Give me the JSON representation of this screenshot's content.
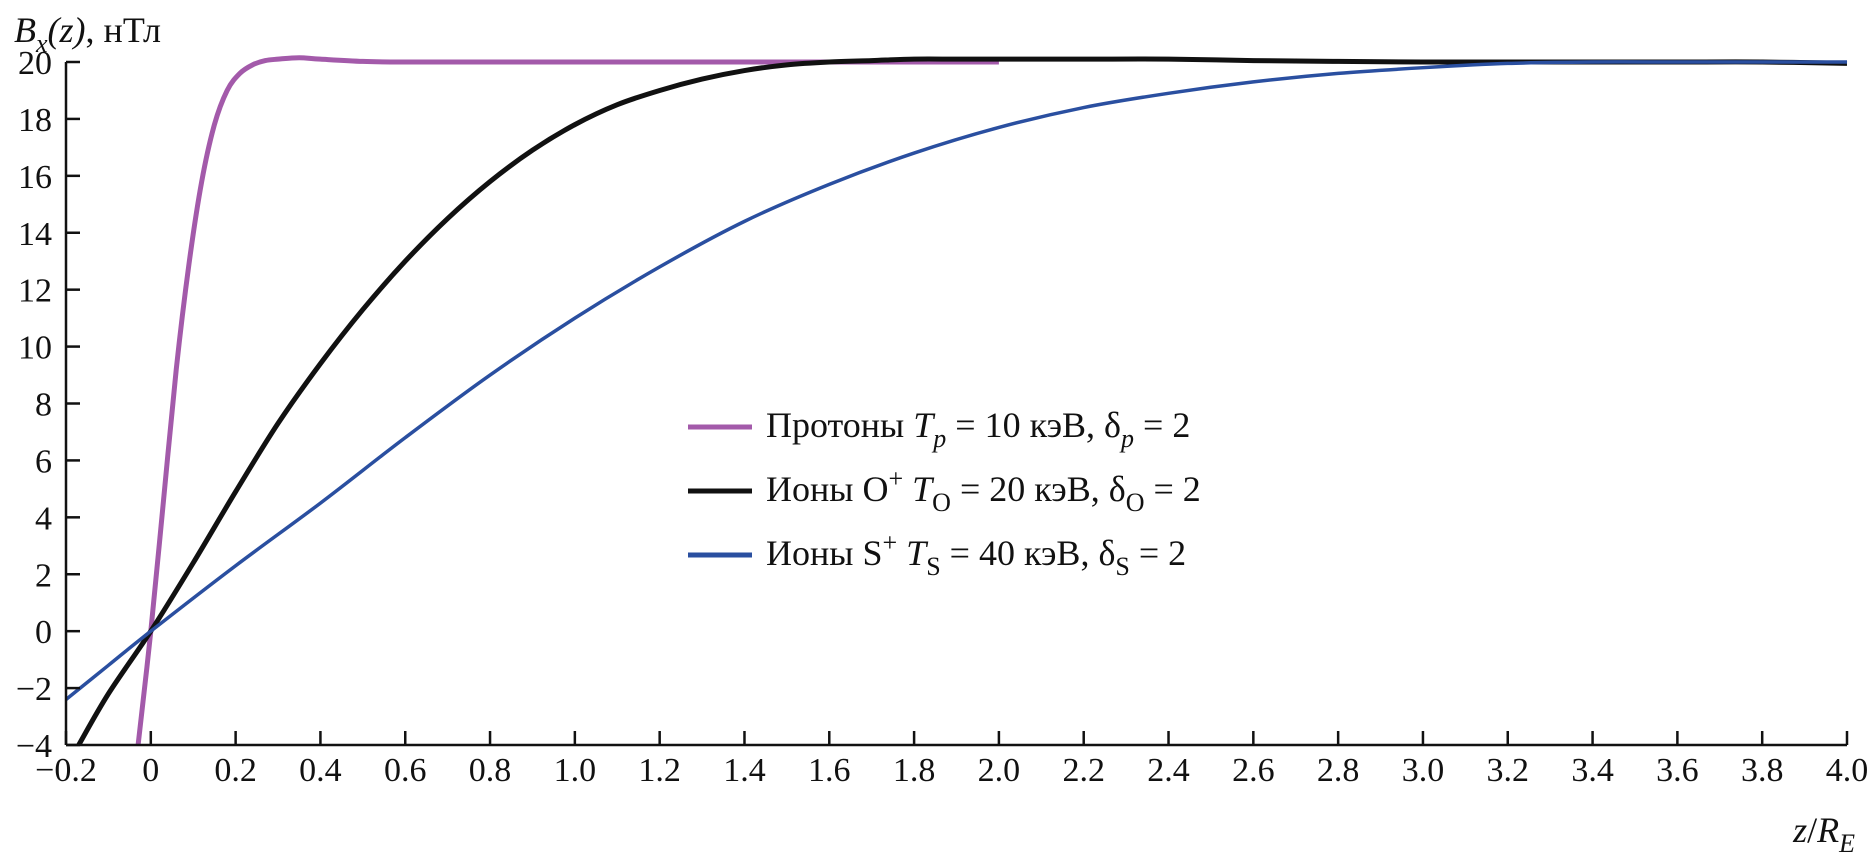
{
  "chart_data": {
    "type": "line",
    "title": "",
    "ylabel": {
      "var": "B",
      "sub": "x",
      "arg": "(z), ",
      "unit": "нТл"
    },
    "xlabel": {
      "num": "z",
      "den": "R",
      "sub": "E"
    },
    "xlim": [
      -0.2,
      4.0
    ],
    "ylim": [
      -4,
      20
    ],
    "x_ticks": [
      -0.2,
      0,
      0.2,
      0.4,
      0.6,
      0.8,
      1.0,
      1.2,
      1.4,
      1.6,
      1.8,
      2.0,
      2.2,
      2.4,
      2.6,
      2.8,
      3.0,
      3.2,
      3.4,
      3.6,
      3.8,
      4.0
    ],
    "x_tick_labels": [
      "−0.2",
      "0",
      "0.2",
      "0.4",
      "0.6",
      "0.8",
      "1.0",
      "1.2",
      "1.4",
      "1.6",
      "1.8",
      "2.0",
      "2.2",
      "2.4",
      "2.6",
      "2.8",
      "3.0",
      "3.2",
      "3.4",
      "3.6",
      "3.8",
      "4.0"
    ],
    "y_ticks": [
      -4,
      -2,
      0,
      2,
      4,
      6,
      8,
      10,
      12,
      14,
      16,
      18,
      20
    ],
    "y_tick_labels": [
      "−4",
      "−2",
      "0",
      "2",
      "4",
      "6",
      "8",
      "10",
      "12",
      "14",
      "16",
      "18",
      "20"
    ],
    "grid": false,
    "legend_position": "center",
    "series": [
      {
        "name": "Протоны T_p = 10 кэВ, δ_p = 2",
        "legend": {
          "pre": "Протоны ",
          "T": "T",
          "tsub": "p",
          "mid": " = 10 кэВ, ",
          "d": "δ",
          "dsub": "p",
          "post": " = 2"
        },
        "color": "#a35aaa",
        "stroke_width": 5,
        "x": [
          -0.03,
          0.0,
          0.03,
          0.06,
          0.09,
          0.12,
          0.15,
          0.18,
          0.21,
          0.24,
          0.27,
          0.3,
          0.35,
          0.4,
          0.5,
          0.6,
          0.8,
          1.0,
          1.2,
          1.4,
          1.6,
          1.8,
          2.0
        ],
        "y": [
          -4.0,
          0.0,
          4.6,
          9.2,
          12.9,
          15.8,
          17.8,
          19.0,
          19.6,
          19.9,
          20.05,
          20.1,
          20.15,
          20.1,
          20.02,
          20.0,
          20.0,
          20.0,
          20.0,
          20.0,
          20.0,
          20.0,
          20.0
        ]
      },
      {
        "name": "Ионы O⁺ T_O = 20 кэВ, δ_O = 2",
        "legend": {
          "pre": "Ионы O",
          "sup": "+",
          "gap": " ",
          "T": "T",
          "tsub": "O",
          "mid": " = 20 кэВ, ",
          "d": "δ",
          "dsub": "O",
          "post": " = 2"
        },
        "color": "#111111",
        "stroke_width": 5,
        "x": [
          -0.17,
          -0.1,
          0.0,
          0.1,
          0.2,
          0.3,
          0.4,
          0.5,
          0.6,
          0.7,
          0.8,
          0.9,
          1.0,
          1.1,
          1.2,
          1.3,
          1.4,
          1.5,
          1.6,
          1.7,
          1.8,
          1.9,
          2.0,
          2.2,
          2.4,
          2.6,
          2.8,
          3.0,
          3.2,
          3.4,
          3.6,
          3.8,
          4.0
        ],
        "y": [
          -4.0,
          -2.2,
          0.0,
          2.4,
          4.9,
          7.3,
          9.4,
          11.3,
          13.0,
          14.5,
          15.8,
          16.9,
          17.8,
          18.5,
          19.0,
          19.4,
          19.7,
          19.9,
          20.0,
          20.05,
          20.1,
          20.1,
          20.1,
          20.1,
          20.1,
          20.05,
          20.02,
          20.0,
          20.0,
          20.0,
          20.0,
          20.0,
          19.95
        ]
      },
      {
        "name": "Ионы S⁺ T_S = 40 кэВ, δ_S = 2",
        "legend": {
          "pre": "Ионы S",
          "sup": "+",
          "gap": " ",
          "T": "T",
          "tsub": "S",
          "mid": " = 40 кэВ, ",
          "d": "δ",
          "dsub": "S",
          "post": " = 2"
        },
        "color": "#2a4fa0",
        "stroke_width": 3.5,
        "x": [
          -0.2,
          -0.1,
          0.0,
          0.2,
          0.4,
          0.6,
          0.8,
          1.0,
          1.2,
          1.4,
          1.6,
          1.8,
          2.0,
          2.2,
          2.4,
          2.6,
          2.8,
          3.0,
          3.2,
          3.4,
          3.6,
          3.8,
          4.0
        ],
        "y": [
          -2.4,
          -1.2,
          0.0,
          2.3,
          4.5,
          6.8,
          9.0,
          11.0,
          12.8,
          14.4,
          15.7,
          16.8,
          17.7,
          18.4,
          18.9,
          19.3,
          19.6,
          19.8,
          19.95,
          20.0,
          20.0,
          20.0,
          20.0
        ]
      }
    ]
  }
}
